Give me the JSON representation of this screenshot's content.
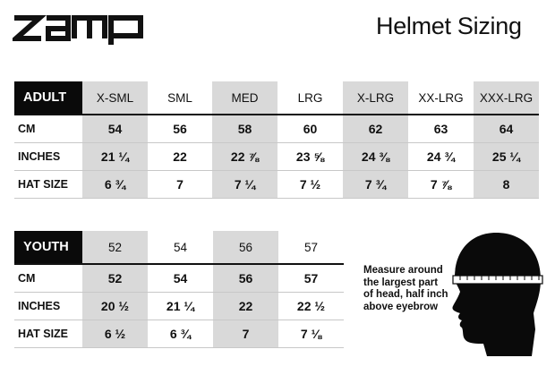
{
  "brand": {
    "name": "zamp"
  },
  "title": "Helmet Sizing",
  "adult": {
    "label": "ADULT",
    "sizes": [
      "X-SML",
      "SML",
      "MED",
      "LRG",
      "X-LRG",
      "XX-LRG",
      "XXX-LRG"
    ],
    "rows": [
      {
        "label": "CM",
        "values": [
          "54",
          "56",
          "58",
          "60",
          "62",
          "63",
          "64"
        ]
      },
      {
        "label": "INCHES",
        "values": [
          "21 ¼",
          "22",
          "22 ⅞",
          "23 ⅝",
          "24 ⅜",
          "24 ¾",
          "25 ¼"
        ]
      },
      {
        "label": "HAT SIZE",
        "values": [
          "6 ¾",
          "7",
          "7 ¼",
          "7 ½",
          "7 ¾",
          "7 ⅞",
          "8"
        ]
      }
    ]
  },
  "youth": {
    "label": "YOUTH",
    "sizes": [
      "52",
      "54",
      "56",
      "57"
    ],
    "rows": [
      {
        "label": "CM",
        "values": [
          "52",
          "54",
          "56",
          "57"
        ]
      },
      {
        "label": "INCHES",
        "values": [
          "20 ½",
          "21 ¼",
          "22",
          "22 ½"
        ]
      },
      {
        "label": "HAT SIZE",
        "values": [
          "6 ½",
          "6 ¾",
          "7",
          "7 ⅛"
        ]
      }
    ]
  },
  "measure_note": {
    "lines": [
      "Measure around",
      "the largest part",
      "of head, half inch",
      "above eyebrow"
    ]
  },
  "colors": {
    "shade": "#d9d9d9",
    "label_bg": "#0a0a0a",
    "text": "#111111"
  }
}
